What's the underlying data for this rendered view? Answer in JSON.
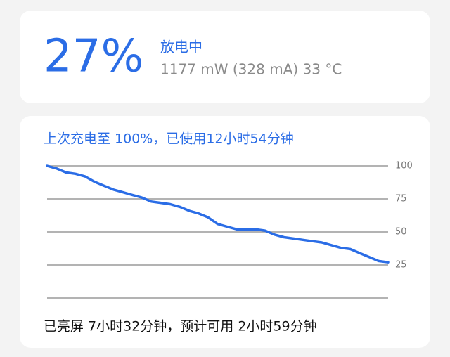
{
  "status": {
    "level": "27%",
    "state": "放电中",
    "detail": "1177 mW (328 mA) 33 °C"
  },
  "chart_data": {
    "type": "line",
    "title": "上次充电至 100%，已使用12小时54分钟",
    "values": [
      100,
      98,
      95,
      94,
      92,
      88,
      85,
      82,
      80,
      78,
      76,
      73,
      72,
      71,
      69,
      66,
      64,
      61,
      56,
      54,
      52,
      52,
      52,
      51,
      48,
      46,
      45,
      44,
      43,
      42,
      40,
      38,
      37,
      34,
      31,
      28,
      27
    ],
    "color": "#2b6de6",
    "ylim": [
      0,
      100
    ],
    "yticks": [
      25,
      50,
      75,
      100
    ],
    "grid": true
  },
  "footer": "已亮屏 7小时32分钟，预计可用 2小时59分钟"
}
